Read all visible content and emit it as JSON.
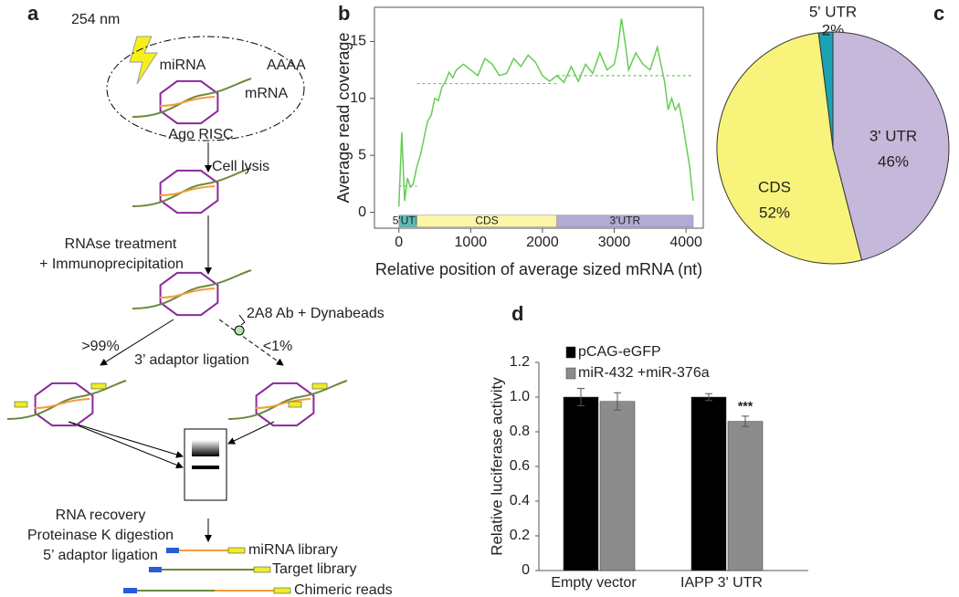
{
  "panel_labels": [
    "a",
    "b",
    "c",
    "d"
  ],
  "diagram": {
    "texts": [
      "254 nm",
      "miRNA",
      "AAAA",
      "mRNA",
      "Ago RISC",
      "Cell lysis",
      "RNAse treatment",
      "+ Immunoprecipitation",
      "2A8 Ab + Dynabeads",
      ">99%",
      "<1%",
      "3’ adaptor ligation",
      "RNA recovery",
      "Proteinase K digestion",
      "5’ adaptor ligation",
      "miRNA library",
      "Target library",
      "Chimeric reads"
    ]
  },
  "chart_data": [
    {
      "type": "line",
      "ylabel": "Average read coverage",
      "xlabel": "Relative position of average sized mRNA (nt)",
      "color": "#66cc55",
      "x": [
        0,
        40,
        80,
        120,
        160,
        200,
        250,
        300,
        350,
        400,
        450,
        500,
        550,
        600,
        650,
        700,
        750,
        800,
        900,
        1000,
        1100,
        1200,
        1300,
        1400,
        1500,
        1600,
        1700,
        1800,
        1900,
        2000,
        2100,
        2200,
        2300,
        2400,
        2500,
        2600,
        2700,
        2800,
        2900,
        3000,
        3050,
        3100,
        3150,
        3200,
        3300,
        3400,
        3500,
        3600,
        3650,
        3700,
        3750,
        3800,
        3850,
        3900,
        3950,
        4000,
        4050,
        4100
      ],
      "values": [
        0.5,
        7,
        1,
        3,
        2.2,
        2.5,
        4,
        5,
        6.5,
        8,
        8.5,
        10,
        9.8,
        11,
        11.5,
        12.3,
        11.8,
        12.5,
        13,
        12.5,
        12,
        13.5,
        13,
        12,
        12.2,
        13.5,
        12.8,
        13.8,
        13.2,
        12,
        11.5,
        12,
        11.4,
        12.8,
        11.5,
        13,
        12.2,
        14,
        12.5,
        13,
        14.5,
        17,
        15,
        12.5,
        14,
        13,
        12.5,
        14.5,
        13,
        11.5,
        9,
        10,
        9,
        9.5,
        8,
        6,
        4,
        1
      ],
      "means": [
        {
          "start": 0,
          "end": 250,
          "value": 2.3
        },
        {
          "start": 250,
          "end": 2200,
          "value": 11.3
        },
        {
          "start": 2200,
          "end": 4100,
          "value": 12
        }
      ],
      "regions": [
        {
          "label": "5'UTR",
          "start": 0,
          "end": 250,
          "color": "#5bbcb8"
        },
        {
          "label": "CDS",
          "start": 250,
          "end": 2200,
          "color": "#fbf6a8"
        },
        {
          "label": "3'UTR",
          "start": 2200,
          "end": 4100,
          "color": "#b3aad6"
        }
      ],
      "xlim": [
        -340,
        4240
      ],
      "ylim": [
        -1.4,
        18
      ],
      "xticks": [
        0,
        1000,
        2000,
        3000,
        4000
      ],
      "yticks": [
        0,
        5,
        10,
        15
      ]
    },
    {
      "type": "pie",
      "categories": [
        "5' UTR",
        "CDS",
        "3' UTR"
      ],
      "values": [
        2,
        52,
        46
      ],
      "value_labels": [
        "2%",
        "52%",
        "46%"
      ],
      "colors": [
        "#1aa3b5",
        "#f8f37a",
        "#c6b8da"
      ]
    },
    {
      "type": "bar",
      "ylabel": "Relative luciferase activity",
      "categories": [
        "Empty vector",
        "IAPP 3' UTR"
      ],
      "series": [
        {
          "name": "pCAG-eGFP",
          "color": "#000000",
          "values": [
            1.0,
            1.0
          ],
          "errors": [
            0.05,
            0.02
          ]
        },
        {
          "name": "miR-432 +miR-376a",
          "color": "#8c8c8c",
          "values": [
            0.975,
            0.86
          ],
          "errors": [
            0.05,
            0.03
          ]
        }
      ],
      "annotation": "***",
      "ylim": [
        0,
        1.2
      ],
      "yticks": [
        0,
        0.2,
        0.4,
        0.6,
        0.8,
        {
          "value": 1,
          "label": "1.0"
        },
        1.2
      ]
    }
  ]
}
